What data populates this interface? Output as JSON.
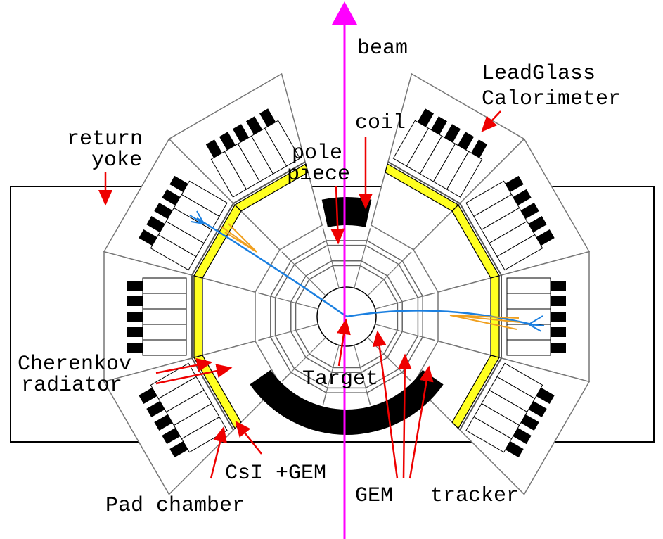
{
  "labels": [
    "beam",
    "LeadGlass",
    "Calorimeter",
    "coil",
    "return",
    "yoke",
    "pole",
    "piece",
    "Cherenkov",
    "radiator",
    "Target",
    "CsI +GEM",
    "Pad chamber",
    "GEM",
    "tracker"
  ]
}
